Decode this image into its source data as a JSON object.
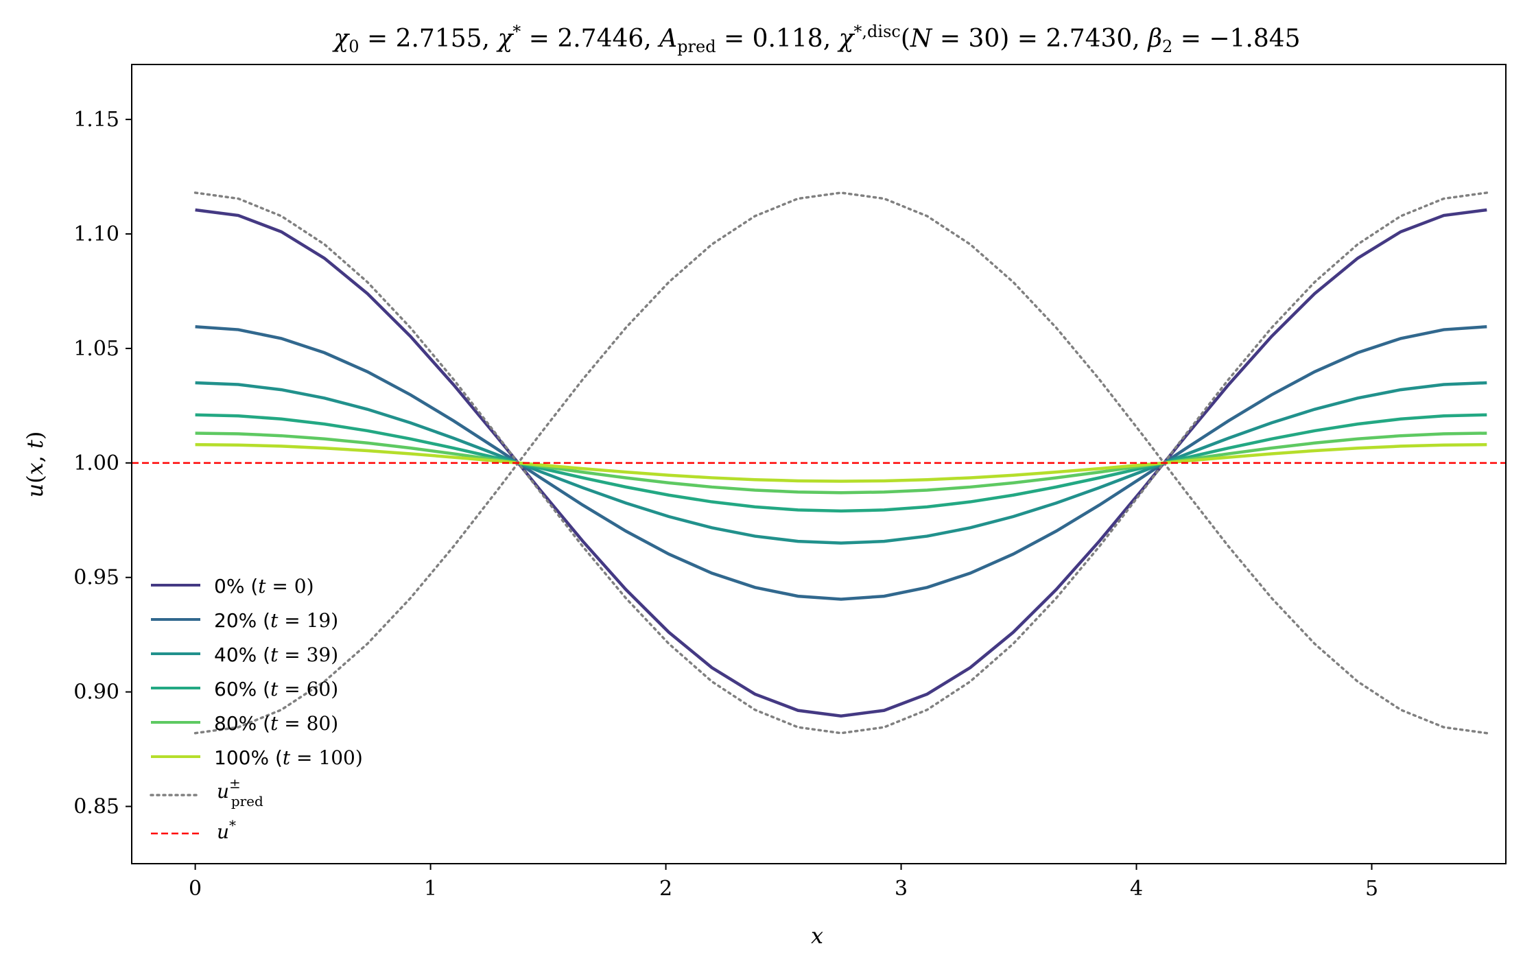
{
  "chart_data": {
    "type": "line",
    "title": "χ₀ = 2.7155,  χ* = 2.7446,  A_pred = 0.118,  χ*,disc(N = 30) = 2.7430,  β₂ = −1.845",
    "xlabel": "x",
    "ylabel": "u(x, t)",
    "xlim": [
      -0.27,
      5.57
    ],
    "ylim": [
      0.825,
      1.174
    ],
    "xticks": [
      0,
      1,
      2,
      3,
      4,
      5
    ],
    "yticks": [
      0.85,
      0.9,
      0.95,
      1.0,
      1.05,
      1.1,
      1.15
    ],
    "xtick_labels": [
      "0",
      "1",
      "2",
      "3",
      "4",
      "5"
    ],
    "ytick_labels": [
      "0.85",
      "0.90",
      "0.95",
      "1.00",
      "1.05",
      "1.10",
      "1.15"
    ],
    "grid": false,
    "legend_position": "lower-left",
    "domain_length": 5.4892,
    "num_points": 31,
    "series": [
      {
        "name": "0% (t = 0)",
        "amplitude": 0.1105,
        "color": "#443983",
        "style": "solid"
      },
      {
        "name": "20% (t = 19)",
        "amplitude": 0.0595,
        "color": "#31688e",
        "style": "solid"
      },
      {
        "name": "40% (t = 39)",
        "amplitude": 0.035,
        "color": "#21918c",
        "style": "solid"
      },
      {
        "name": "60% (t = 60)",
        "amplitude": 0.021,
        "color": "#23a883",
        "style": "solid"
      },
      {
        "name": "80% (t = 80)",
        "amplitude": 0.013,
        "color": "#5ec962",
        "style": "solid"
      },
      {
        "name": "100% (t = 100)",
        "amplitude": 0.008,
        "color": "#b5de2b",
        "style": "solid"
      },
      {
        "name": "u±pred",
        "amplitude": 0.118,
        "color": "#808080",
        "style": "dotted",
        "both_signs": true
      },
      {
        "name": "u*",
        "value": 1.0,
        "color": "#ff0000",
        "style": "dashed"
      }
    ]
  }
}
